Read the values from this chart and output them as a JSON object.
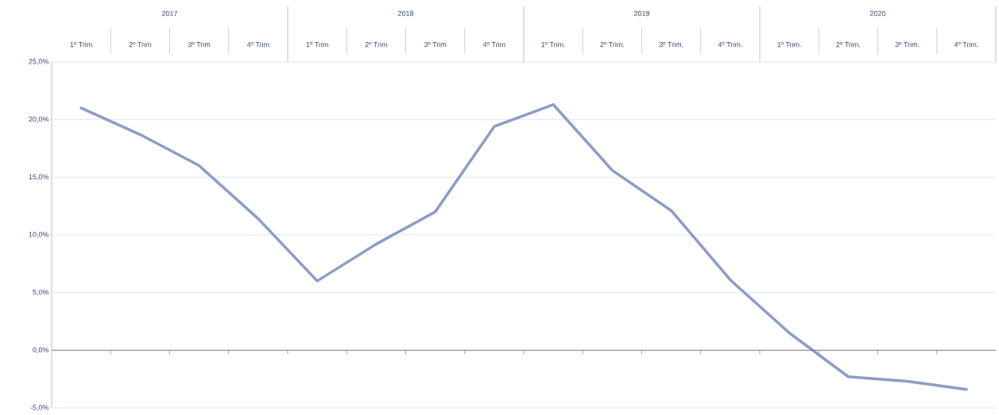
{
  "chart_data": {
    "type": "line",
    "categories": [
      "1º Trim",
      "2º Trim",
      "3º Trim",
      "4º Trim",
      "1º Trim",
      "2º Trim",
      "3º Trim",
      "4º Trim",
      "1º Trim.",
      "2º Trim.",
      "3º Trim.",
      "4º Trim.",
      "1º Trim.",
      "2º Trim.",
      "3º Trim.",
      "4º Trim."
    ],
    "values": [
      21.0,
      18.7,
      16.0,
      11.4,
      6.0,
      9.2,
      12.0,
      19.4,
      21.3,
      15.6,
      12.1,
      6.1,
      1.5,
      -2.3,
      -2.7,
      -3.4
    ],
    "color": "#8c9dc3",
    "ylim": [
      -5,
      25
    ],
    "yticks": [
      {
        "value": -5,
        "label": "-5,0%"
      },
      {
        "value": 0,
        "label": "0,0%"
      },
      {
        "value": 5,
        "label": "5,0%"
      },
      {
        "value": 10,
        "label": "10,0%"
      },
      {
        "value": 15,
        "label": "15,0%"
      },
      {
        "value": 20,
        "label": "20,0%"
      },
      {
        "value": 25,
        "label": "25,0%"
      }
    ],
    "grid": "y",
    "annotations": [
      "2017",
      "2018",
      "2019",
      "2020"
    ]
  }
}
